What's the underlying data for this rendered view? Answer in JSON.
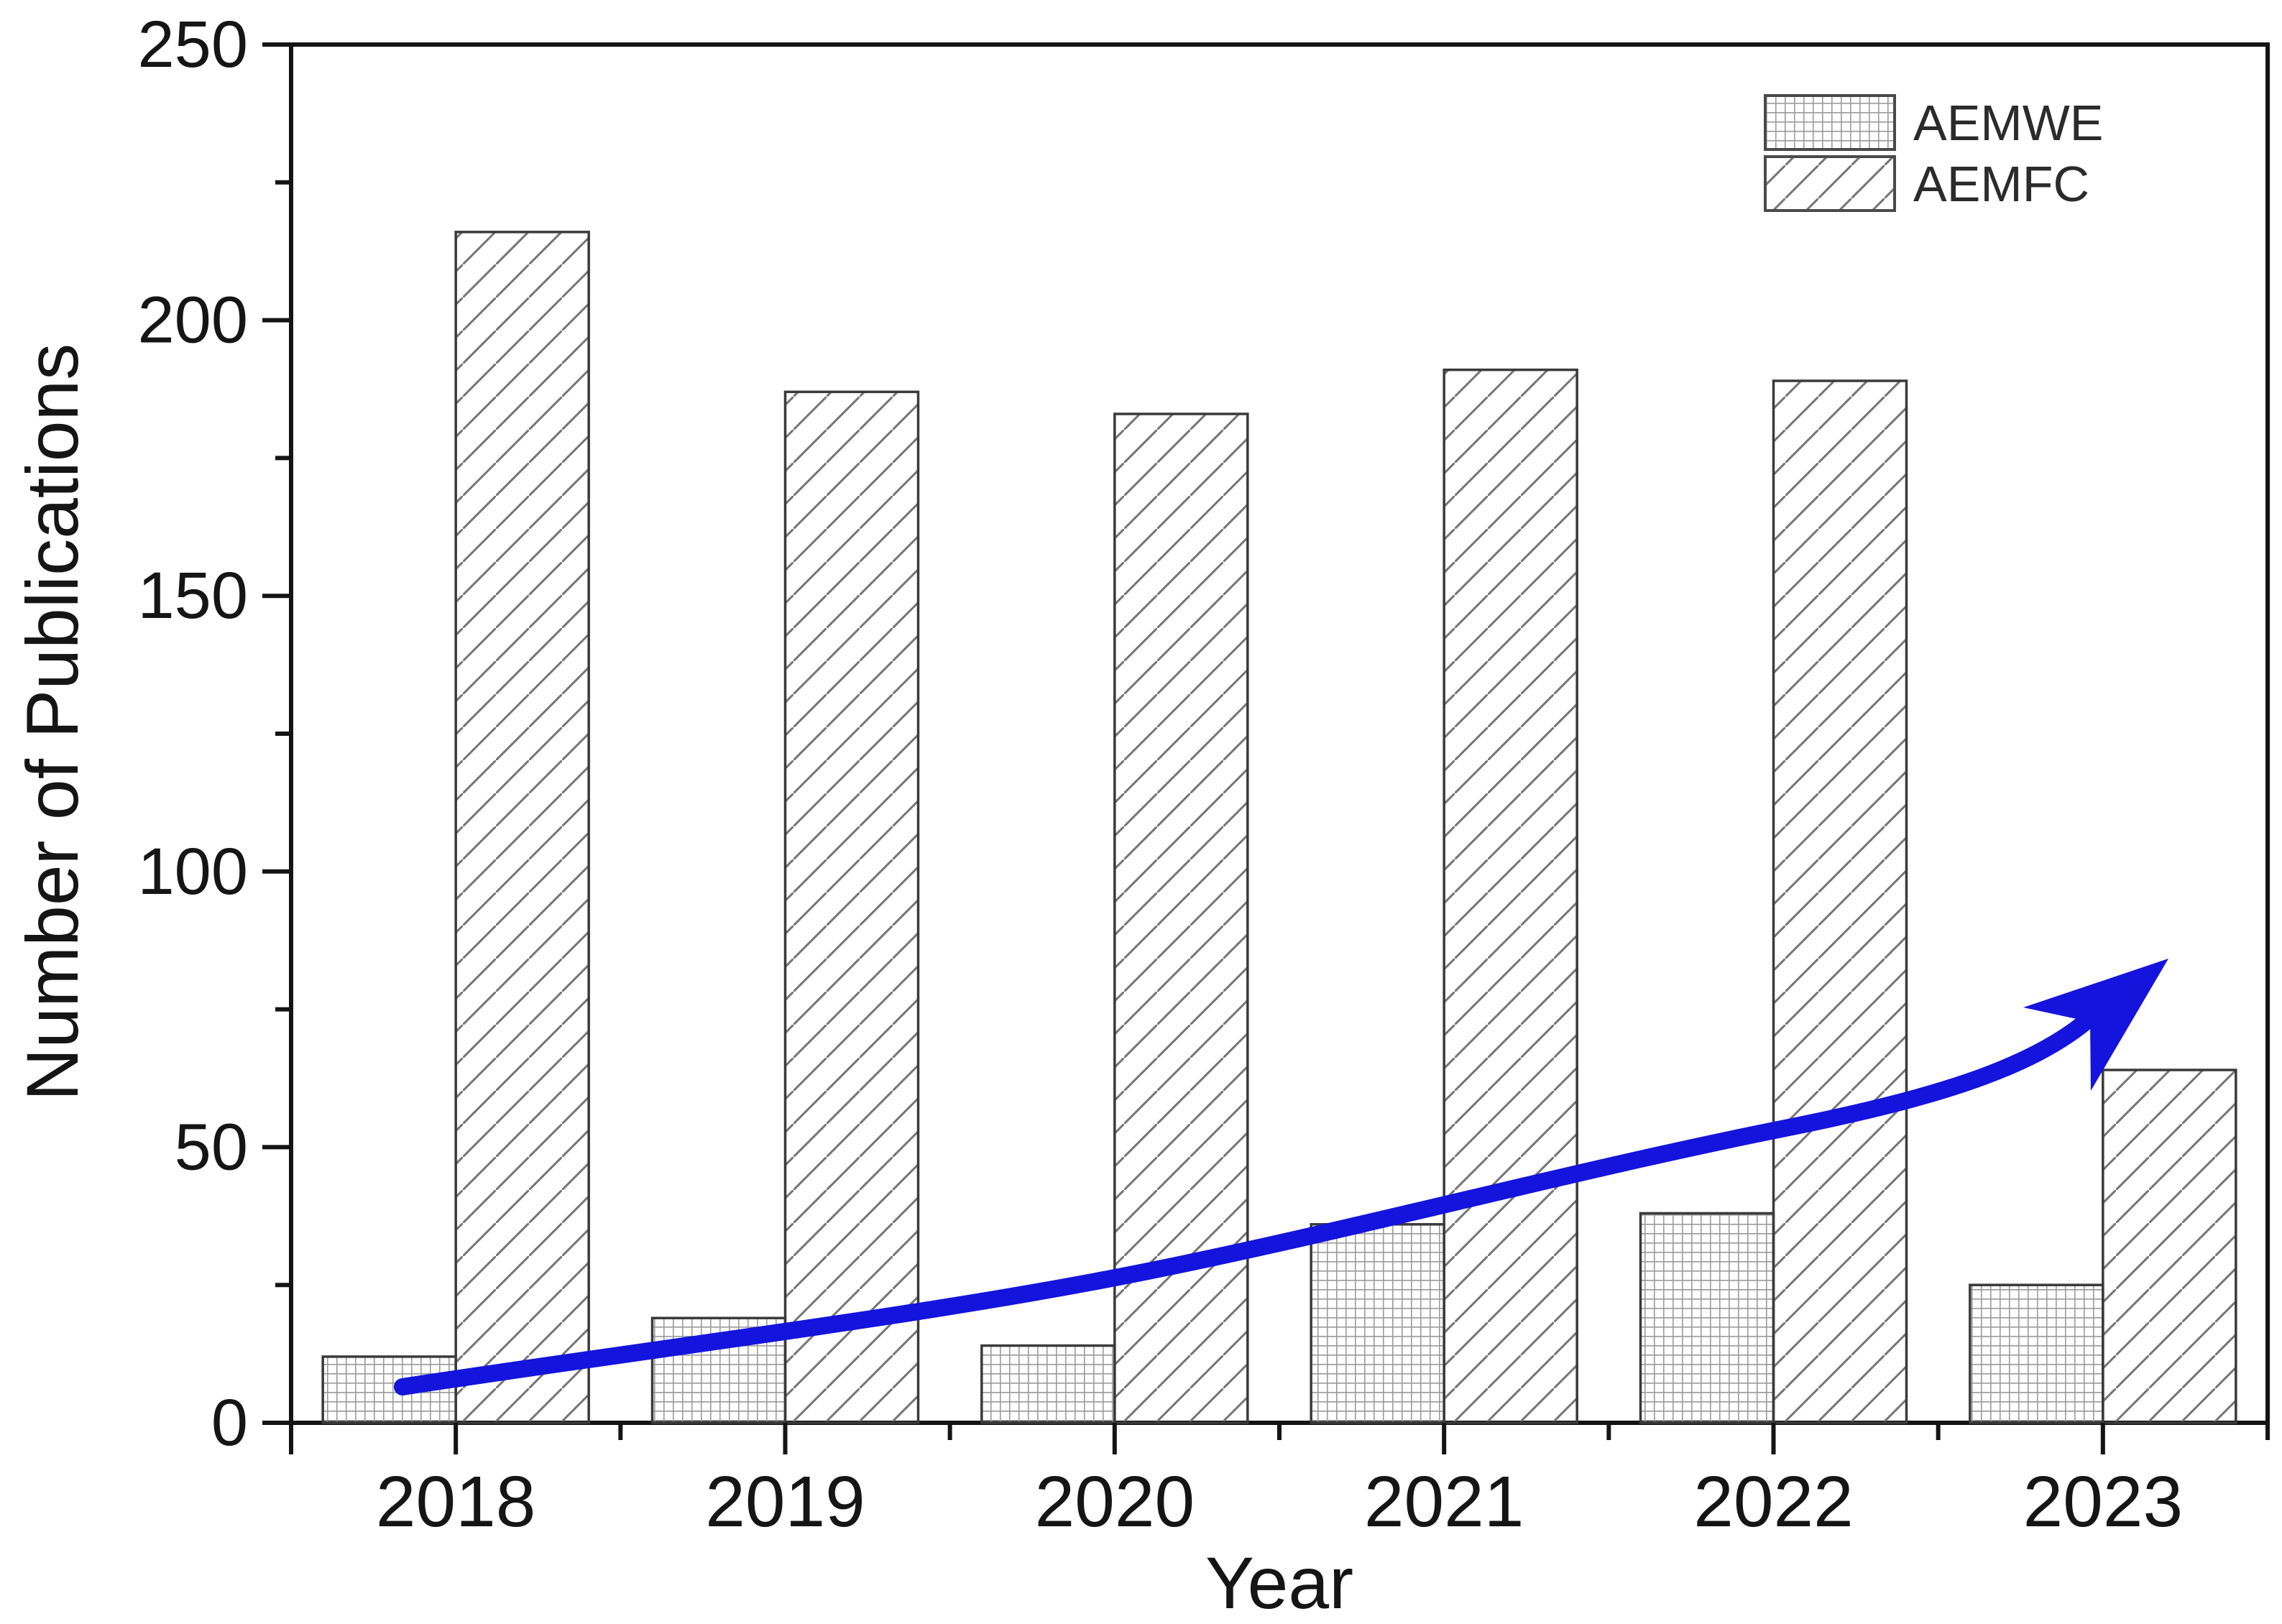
{
  "chart_data": {
    "type": "bar",
    "title": "",
    "xlabel": "Year",
    "ylabel": "Number of Publications",
    "categories": [
      "2018",
      "2019",
      "2020",
      "2021",
      "2022",
      "2023"
    ],
    "series": [
      {
        "name": "AEMWE",
        "pattern": "grid-hatch",
        "values": [
          12,
          19,
          14,
          36,
          38,
          25
        ]
      },
      {
        "name": "AEMFC",
        "pattern": "diagonal-hatch",
        "values": [
          216,
          187,
          183,
          191,
          189,
          64
        ]
      }
    ],
    "ylim": [
      0,
      250
    ],
    "yticks": [
      0,
      50,
      100,
      150,
      200,
      250
    ],
    "yminorticks": [
      25,
      75,
      125,
      175,
      225
    ],
    "grid": false,
    "legend_position": "top-right",
    "axis_color": "#141414",
    "bar_outline_color": "#3a3a3a",
    "annotation": {
      "shape": "curved-arrow-up-right",
      "color": "#1414dd"
    }
  }
}
